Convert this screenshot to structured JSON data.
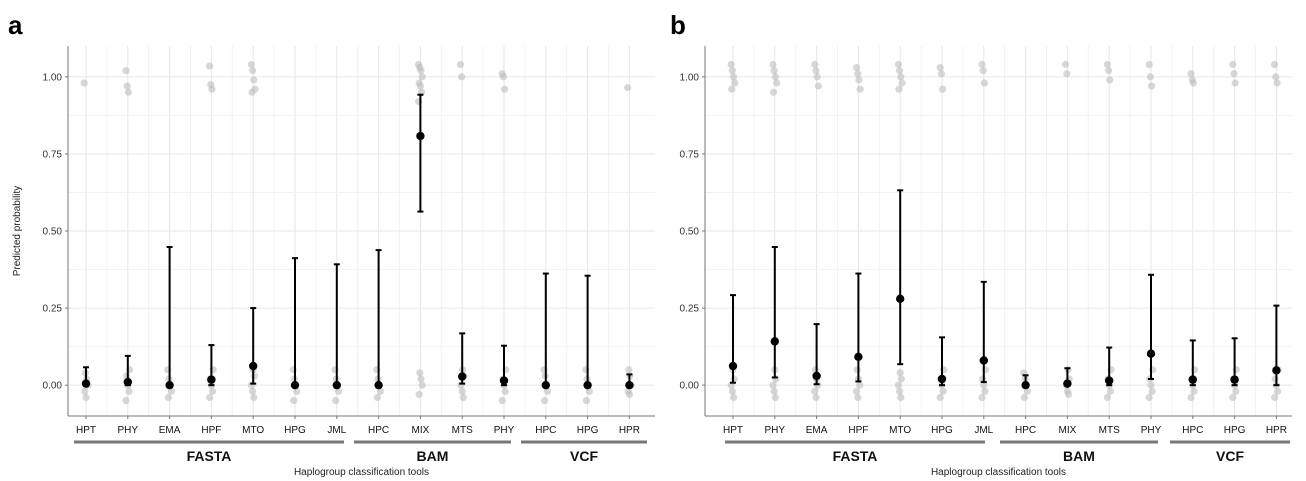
{
  "chart_data": [
    {
      "panel_label": "a",
      "type": "scatter",
      "ylabel": "Predicted probability",
      "xlabel": "Haplogroup classification tools",
      "ylim": [
        -0.1,
        1.1
      ],
      "yticks": [
        "0.00",
        "0.25",
        "0.50",
        "0.75",
        "1.00"
      ],
      "grid": true,
      "groups": [
        {
          "name": "FASTA",
          "categories": [
            "HPT",
            "PHY",
            "EMA",
            "HPF",
            "MTO",
            "HPG",
            "JML"
          ]
        },
        {
          "name": "BAM",
          "categories": [
            "HPC",
            "MIX",
            "MTS",
            "PHY"
          ]
        },
        {
          "name": "VCF",
          "categories": [
            "HPC",
            "HPG",
            "HPR"
          ]
        }
      ],
      "series": [
        {
          "values": [
            0.005,
            0.01,
            0.0,
            0.018,
            0.062,
            0.0,
            0.0,
            0.0,
            0.808,
            0.028,
            0.015,
            0.0,
            0.0,
            0.0
          ],
          "lower": [
            0.0,
            0.0,
            0.0,
            0.0,
            0.005,
            0.0,
            0.0,
            0.0,
            0.563,
            0.005,
            0.0,
            0.0,
            0.0,
            0.0
          ],
          "upper": [
            0.058,
            0.095,
            0.448,
            0.13,
            0.25,
            0.412,
            0.392,
            0.438,
            0.942,
            0.168,
            0.128,
            0.362,
            0.355,
            0.035
          ]
        }
      ],
      "raw_points": {
        "high": [
          [
            0.98
          ],
          [
            1.02,
            0.97,
            0.95
          ],
          [],
          [
            1.035,
            0.975,
            0.96
          ],
          [
            1.04,
            1.02,
            0.99,
            0.96,
            0.95
          ],
          [],
          [],
          [],
          [
            1.04,
            1.03,
            1.02,
            1.0,
            0.98,
            0.97,
            0.95,
            0.92
          ],
          [
            1.04,
            1.0
          ],
          [
            1.01,
            1.0,
            0.96
          ],
          [],
          [],
          [
            0.965
          ]
        ],
        "low": [
          [
            0.04,
            0.02,
            0.0,
            -0.02,
            -0.04
          ],
          [
            0.05,
            0.03,
            0.0,
            -0.02,
            -0.05
          ],
          [
            0.05,
            0.02,
            0.0,
            -0.02,
            -0.04
          ],
          [
            0.05,
            0.02,
            0.0,
            -0.02,
            -0.04
          ],
          [
            0.05,
            0.03,
            0.0,
            -0.02,
            -0.04
          ],
          [
            0.05,
            0.02,
            0.0,
            -0.02,
            -0.05
          ],
          [
            0.05,
            0.02,
            0.0,
            -0.02,
            -0.05
          ],
          [
            0.05,
            0.02,
            0.0,
            -0.02,
            -0.04
          ],
          [
            0.04,
            0.02,
            0.0,
            -0.03
          ],
          [
            0.05,
            0.03,
            0.0,
            -0.02,
            -0.04
          ],
          [
            0.05,
            0.02,
            0.0,
            -0.02,
            -0.05
          ],
          [
            0.05,
            0.03,
            0.0,
            -0.02,
            -0.05
          ],
          [
            0.05,
            0.02,
            0.0,
            -0.02,
            -0.05
          ],
          [
            0.05,
            0.03,
            0.0,
            -0.02,
            -0.03
          ]
        ]
      }
    },
    {
      "panel_label": "b",
      "type": "scatter",
      "ylabel": "",
      "xlabel": "Haplogroup classification tools",
      "ylim": [
        -0.1,
        1.1
      ],
      "yticks": [
        "0.00",
        "0.25",
        "0.50",
        "0.75",
        "1.00"
      ],
      "grid": true,
      "groups": [
        {
          "name": "FASTA",
          "categories": [
            "HPT",
            "PHY",
            "EMA",
            "HPF",
            "MTO",
            "HPG",
            "JML"
          ]
        },
        {
          "name": "BAM",
          "categories": [
            "HPC",
            "MIX",
            "MTS",
            "PHY"
          ]
        },
        {
          "name": "VCF",
          "categories": [
            "HPC",
            "HPG",
            "HPR"
          ]
        }
      ],
      "series": [
        {
          "values": [
            0.062,
            0.142,
            0.03,
            0.092,
            0.28,
            0.02,
            0.08,
            0.0,
            0.005,
            0.015,
            0.102,
            0.018,
            0.018,
            0.048
          ],
          "lower": [
            0.008,
            0.025,
            0.003,
            0.012,
            0.068,
            0.0,
            0.01,
            0.0,
            0.0,
            0.0,
            0.02,
            0.0,
            0.0,
            0.0
          ],
          "upper": [
            0.292,
            0.448,
            0.198,
            0.362,
            0.632,
            0.155,
            0.335,
            0.032,
            0.055,
            0.122,
            0.358,
            0.145,
            0.152,
            0.258
          ]
        }
      ],
      "raw_points": {
        "high": [
          [
            1.04,
            1.02,
            1.0,
            0.98,
            0.96
          ],
          [
            1.04,
            1.02,
            1.0,
            0.98,
            0.95
          ],
          [
            1.04,
            1.02,
            1.0,
            0.97
          ],
          [
            1.03,
            1.01,
            0.99,
            0.96
          ],
          [
            1.04,
            1.02,
            1.0,
            0.98,
            0.96
          ],
          [
            1.03,
            1.01,
            0.96
          ],
          [
            1.04,
            1.02,
            0.98
          ],
          [],
          [
            1.04,
            1.01
          ],
          [
            1.04,
            1.02,
            0.99
          ],
          [
            1.04,
            1.0,
            0.97
          ],
          [
            1.01,
            0.99,
            0.98
          ],
          [
            1.04,
            1.01,
            0.98
          ],
          [
            1.04,
            1.0,
            0.98
          ]
        ],
        "low": [
          [
            0.05,
            0.02,
            0.0,
            -0.02,
            -0.04
          ],
          [
            0.05,
            0.02,
            0.0,
            -0.02,
            -0.04
          ],
          [
            0.05,
            0.02,
            0.0,
            -0.02,
            -0.04
          ],
          [
            0.05,
            0.02,
            0.0,
            -0.02,
            -0.04
          ],
          [
            0.04,
            0.02,
            0.0,
            -0.02,
            -0.04
          ],
          [
            0.05,
            0.02,
            0.0,
            -0.02,
            -0.04
          ],
          [
            0.05,
            0.02,
            0.0,
            -0.02,
            -0.04
          ],
          [
            0.04,
            0.02,
            0.0,
            -0.02,
            -0.04
          ],
          [
            0.05,
            0.02,
            0.0,
            -0.02,
            -0.03
          ],
          [
            0.05,
            0.02,
            0.0,
            -0.02,
            -0.04
          ],
          [
            0.05,
            0.02,
            0.0,
            -0.02,
            -0.04
          ],
          [
            0.05,
            0.02,
            0.0,
            -0.02,
            -0.04
          ],
          [
            0.05,
            0.02,
            0.0,
            -0.02,
            -0.04
          ],
          [
            0.05,
            0.02,
            0.0,
            -0.02,
            -0.04
          ]
        ]
      }
    }
  ]
}
